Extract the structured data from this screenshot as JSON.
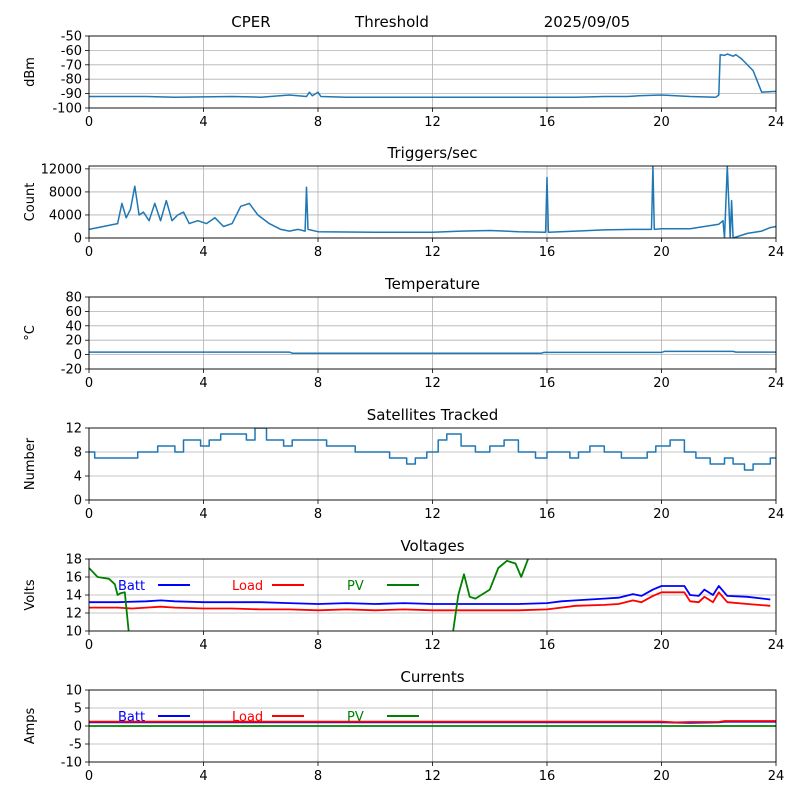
{
  "header": {
    "station": "CPER",
    "mode": "Threshold",
    "date": "2025/09/05"
  },
  "chart_data": [
    {
      "id": "signal",
      "type": "line",
      "title": "",
      "xlabel": "",
      "ylabel": "dBm",
      "xlim": [
        0,
        24
      ],
      "ylim": [
        -100,
        -50
      ],
      "xticks": [
        "0",
        "4",
        "8",
        "12",
        "16",
        "20",
        "24"
      ],
      "yticks": [
        "-50",
        "-60",
        "-70",
        "-80",
        "-90",
        "-100"
      ],
      "grid": true,
      "series": [
        {
          "color": "#1f77b4",
          "x": [
            0,
            2,
            3,
            5,
            6,
            7,
            7.6,
            7.7,
            7.8,
            8.0,
            8.1,
            9,
            12,
            15,
            16,
            17,
            18,
            18.8,
            19.2,
            20,
            21,
            21.9,
            22.0,
            22.05,
            22.2,
            22.3,
            22.5,
            22.6,
            22.8,
            23.2,
            23.5,
            24
          ],
          "y": [
            -92,
            -92,
            -92.5,
            -92,
            -92.5,
            -91,
            -92,
            -89,
            -91.5,
            -89,
            -92,
            -92.5,
            -92.5,
            -92.5,
            -92.5,
            -92.5,
            -92,
            -92,
            -91.5,
            -91,
            -92,
            -92.5,
            -91,
            -63,
            -63.5,
            -62.5,
            -64,
            -63,
            -66,
            -74,
            -89,
            -88.5
          ]
        }
      ]
    },
    {
      "id": "triggers",
      "type": "line",
      "title": "Triggers/sec",
      "xlabel": "",
      "ylabel": "Count",
      "xlim": [
        0,
        24
      ],
      "ylim": [
        0,
        12500
      ],
      "xticks": [
        "0",
        "4",
        "8",
        "12",
        "16",
        "20",
        "24"
      ],
      "yticks": [
        "0",
        "4000",
        "8000",
        "12000"
      ],
      "grid": true,
      "series": [
        {
          "color": "#1f77b4",
          "x": [
            0,
            0.5,
            1.0,
            1.15,
            1.3,
            1.45,
            1.6,
            1.75,
            1.9,
            2.1,
            2.3,
            2.5,
            2.7,
            2.9,
            3.1,
            3.3,
            3.5,
            3.8,
            4.1,
            4.4,
            4.7,
            5.0,
            5.3,
            5.6,
            5.9,
            6.3,
            6.7,
            7.0,
            7.3,
            7.55,
            7.6,
            7.65,
            8.0,
            10,
            12,
            13,
            14,
            15,
            15.95,
            16.0,
            16.05,
            17,
            18,
            19,
            19.65,
            19.7,
            19.75,
            20,
            21,
            21.5,
            22.0,
            22.15,
            22.2,
            22.3,
            22.4,
            22.45,
            22.5,
            23,
            23.5,
            23.8,
            24
          ],
          "y": [
            1500,
            2000,
            2500,
            6000,
            3500,
            5000,
            9000,
            4000,
            4500,
            3000,
            6000,
            3000,
            6500,
            3000,
            4000,
            4500,
            2500,
            3000,
            2500,
            3500,
            2000,
            2500,
            5500,
            6000,
            4000,
            2500,
            1500,
            1200,
            1500,
            1200,
            8800,
            1500,
            1100,
            1000,
            1000,
            1200,
            1300,
            1100,
            1000,
            10500,
            1000,
            1200,
            1400,
            1500,
            1500,
            12500,
            1500,
            1600,
            1600,
            2000,
            2400,
            3000,
            0,
            12500,
            0,
            6500,
            0,
            800,
            1200,
            1800,
            2000
          ]
        }
      ]
    },
    {
      "id": "temperature",
      "type": "line",
      "title": "Temperature",
      "xlabel": "",
      "ylabel": "°C",
      "xlim": [
        0,
        24
      ],
      "ylim": [
        -20,
        80
      ],
      "xticks": [
        "0",
        "4",
        "8",
        "12",
        "16",
        "20",
        "24"
      ],
      "yticks": [
        "-20",
        "0",
        "20",
        "40",
        "60",
        "80"
      ],
      "grid": true,
      "series": [
        {
          "color": "#1f77b4",
          "x": [
            0,
            7.0,
            7.1,
            15.8,
            15.9,
            20.0,
            20.1,
            22.5,
            22.6,
            24
          ],
          "y": [
            3.5,
            3.5,
            2.0,
            2.0,
            3.0,
            3.0,
            4.5,
            4.5,
            3.5,
            3.5
          ]
        }
      ]
    },
    {
      "id": "satellites",
      "type": "line",
      "title": "Satellites Tracked",
      "xlabel": "",
      "ylabel": "Number",
      "xlim": [
        0,
        24
      ],
      "ylim": [
        0,
        12
      ],
      "xticks": [
        "0",
        "4",
        "8",
        "12",
        "16",
        "20",
        "24"
      ],
      "yticks": [
        "0",
        "4",
        "8",
        "12"
      ],
      "grid": true,
      "series": [
        {
          "color": "#1f77b4",
          "x": [
            0,
            0.2,
            0.2,
            1.7,
            1.7,
            2.4,
            2.4,
            3.0,
            3.0,
            3.3,
            3.3,
            3.9,
            3.9,
            4.2,
            4.2,
            4.6,
            4.6,
            5.5,
            5.5,
            5.8,
            5.8,
            6.2,
            6.2,
            6.8,
            6.8,
            7.1,
            7.1,
            8.3,
            8.3,
            9.3,
            9.3,
            10.5,
            10.5,
            11.1,
            11.1,
            11.4,
            11.4,
            11.8,
            11.8,
            12.2,
            12.2,
            12.5,
            12.5,
            13.0,
            13.0,
            13.5,
            13.5,
            14.0,
            14.0,
            14.5,
            14.5,
            15.0,
            15.0,
            15.6,
            15.6,
            16.0,
            16.0,
            16.8,
            16.8,
            17.1,
            17.1,
            17.5,
            17.5,
            18.0,
            18.0,
            18.6,
            18.6,
            19.5,
            19.5,
            19.8,
            19.8,
            20.3,
            20.3,
            20.8,
            20.8,
            21.2,
            21.2,
            21.7,
            21.7,
            22.2,
            22.2,
            22.5,
            22.5,
            22.9,
            22.9,
            23.2,
            23.2,
            23.8,
            23.8,
            24
          ],
          "y": [
            8,
            8,
            7,
            7,
            8,
            8,
            9,
            9,
            8,
            8,
            10,
            10,
            9,
            9,
            10,
            10,
            11,
            11,
            10,
            10,
            12,
            12,
            10,
            10,
            9,
            9,
            10,
            10,
            9,
            9,
            8,
            8,
            7,
            7,
            6,
            6,
            7,
            7,
            8,
            8,
            10,
            10,
            11,
            11,
            9,
            9,
            8,
            8,
            9,
            9,
            10,
            10,
            8,
            8,
            7,
            7,
            8,
            8,
            7,
            7,
            8,
            8,
            9,
            9,
            8,
            8,
            7,
            7,
            8,
            8,
            9,
            9,
            10,
            10,
            8,
            8,
            7,
            7,
            6,
            6,
            7,
            7,
            6,
            6,
            5,
            5,
            6,
            6,
            7,
            7
          ]
        }
      ]
    },
    {
      "id": "voltages",
      "type": "line",
      "title": "Voltages",
      "xlabel": "",
      "ylabel": "Volts",
      "xlim": [
        0,
        24
      ],
      "ylim": [
        10,
        18
      ],
      "xticks": [
        "0",
        "4",
        "8",
        "12",
        "16",
        "20",
        "24"
      ],
      "yticks": [
        "10",
        "12",
        "14",
        "16",
        "18"
      ],
      "grid": true,
      "legend": [
        {
          "label": "Batt",
          "color": "#0000ff"
        },
        {
          "label": "Load",
          "color": "#ff0000"
        },
        {
          "label": "PV",
          "color": "#008000"
        }
      ],
      "series": [
        {
          "name": "Batt",
          "color": "#0000ff",
          "x": [
            0,
            1,
            2,
            2.5,
            3,
            4,
            5,
            6,
            7,
            8,
            9,
            10,
            11,
            12,
            13,
            14,
            15,
            16,
            16.5,
            17,
            18,
            18.5,
            19,
            19.3,
            19.7,
            20,
            20.5,
            20.8,
            21.0,
            21.3,
            21.5,
            21.8,
            22.0,
            22.3,
            23,
            23.8
          ],
          "y": [
            13.2,
            13.2,
            13.3,
            13.4,
            13.3,
            13.2,
            13.2,
            13.2,
            13.1,
            13.0,
            13.1,
            13.0,
            13.1,
            13.0,
            13.0,
            13.0,
            13.0,
            13.1,
            13.3,
            13.4,
            13.6,
            13.7,
            14.1,
            13.9,
            14.6,
            15.0,
            15.0,
            15.0,
            14.0,
            13.9,
            14.6,
            14.0,
            15.0,
            13.9,
            13.8,
            13.5
          ]
        },
        {
          "name": "Load",
          "color": "#ff0000",
          "x": [
            0,
            1,
            1.5,
            2,
            2.5,
            3,
            4,
            5,
            6,
            7,
            8,
            9,
            10,
            11,
            12,
            13,
            14,
            15,
            16,
            16.5,
            17,
            18,
            18.5,
            19,
            19.3,
            19.7,
            20,
            20.5,
            20.8,
            21.0,
            21.3,
            21.5,
            21.8,
            22.0,
            22.3,
            23,
            23.8
          ],
          "y": [
            12.6,
            12.6,
            12.5,
            12.6,
            12.7,
            12.6,
            12.5,
            12.5,
            12.4,
            12.4,
            12.3,
            12.4,
            12.3,
            12.4,
            12.3,
            12.3,
            12.3,
            12.3,
            12.4,
            12.6,
            12.8,
            12.9,
            13.0,
            13.4,
            13.2,
            13.9,
            14.3,
            14.3,
            14.3,
            13.3,
            13.2,
            13.8,
            13.2,
            14.3,
            13.2,
            13.0,
            12.8
          ]
        },
        {
          "name": "PV",
          "color": "#008000",
          "x": [
            0,
            0.3,
            0.7,
            0.9,
            1.0,
            1.1,
            1.25,
            1.4,
            12.7,
            12.9,
            13.1,
            13.3,
            13.5,
            14.0,
            14.3,
            14.6,
            14.9,
            15.1,
            15.4
          ],
          "y": [
            17.0,
            16.0,
            15.8,
            15.2,
            14.0,
            14.2,
            14.3,
            9.5,
            9.5,
            14.0,
            16.3,
            13.8,
            13.6,
            14.6,
            17.0,
            17.8,
            17.5,
            16.0,
            18.5
          ]
        }
      ]
    },
    {
      "id": "currents",
      "type": "line",
      "title": "Currents",
      "xlabel": "",
      "ylabel": "Amps",
      "xlim": [
        0,
        24
      ],
      "ylim": [
        -10,
        10
      ],
      "xticks": [
        "0",
        "4",
        "8",
        "12",
        "16",
        "20",
        "24"
      ],
      "yticks": [
        "-10",
        "-5",
        "0",
        "5",
        "10"
      ],
      "grid": true,
      "legend": [
        {
          "label": "Batt",
          "color": "#0000ff"
        },
        {
          "label": "Load",
          "color": "#ff0000"
        },
        {
          "label": "PV",
          "color": "#008000"
        }
      ],
      "series": [
        {
          "name": "Batt",
          "color": "#0000ff",
          "x": [
            0,
            20,
            21,
            22,
            22.2,
            24
          ],
          "y": [
            1.0,
            1.0,
            0.9,
            1.0,
            1.2,
            1.2
          ]
        },
        {
          "name": "Load",
          "color": "#ff0000",
          "x": [
            0,
            20,
            20.5,
            21,
            22,
            22.2,
            24
          ],
          "y": [
            1.2,
            1.2,
            1.0,
            1.1,
            1.1,
            1.4,
            1.4
          ]
        },
        {
          "name": "PV",
          "color": "#008000",
          "x": [
            0,
            24
          ],
          "y": [
            0,
            0
          ]
        }
      ]
    }
  ]
}
